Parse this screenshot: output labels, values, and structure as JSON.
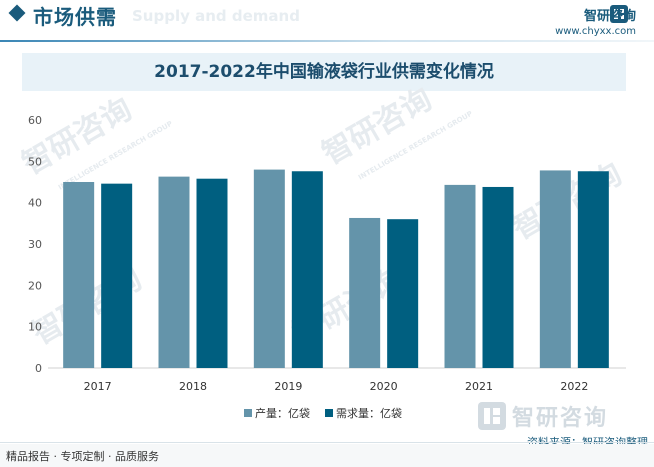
{
  "header": {
    "title": "市场供需",
    "ghost_text": "Supply and demand"
  },
  "brand": {
    "name": "智研咨询",
    "url": "www.chyxx.com"
  },
  "watermark": {
    "text": "智研咨询",
    "sub": "INTELLIGENCE RESEARCH GROUP"
  },
  "chart_data": {
    "type": "bar",
    "title": "2017-2022年中国输液袋行业供需变化情况",
    "categories": [
      "2017",
      "2018",
      "2019",
      "2020",
      "2021",
      "2022"
    ],
    "series": [
      {
        "name": "产量：亿袋",
        "color": "#6494aa",
        "values": [
          45.0,
          46.3,
          48.0,
          36.3,
          44.3,
          47.8
        ]
      },
      {
        "name": "需求量：亿袋",
        "color": "#005f80",
        "values": [
          44.6,
          45.8,
          47.6,
          36.0,
          43.8,
          47.6
        ]
      }
    ],
    "ylim": [
      0,
      60
    ],
    "yticks": [
      0,
      10,
      20,
      30,
      40,
      50,
      60
    ],
    "xlabel": "",
    "ylabel": "",
    "grid": false,
    "legend": "bottom-center"
  },
  "footer": {
    "left": "精品报告 · 专项定制 · 品质服务",
    "right": "资料来源：智研咨询整理"
  }
}
